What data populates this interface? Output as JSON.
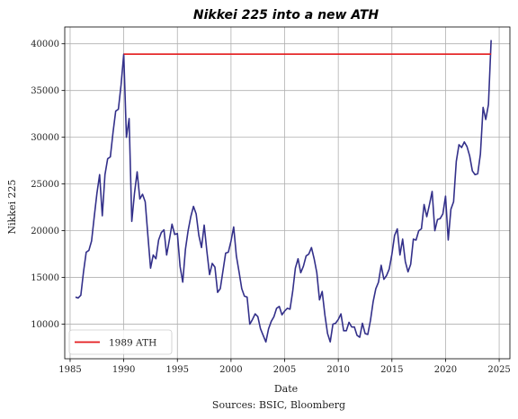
{
  "figure": {
    "source_note": "Sources: BSIC, Bloomberg"
  },
  "chart_data": {
    "type": "line",
    "title": "Nikkei 225 into a new ATH",
    "xlabel": "Date",
    "ylabel": "Nikkei 225",
    "xlim": [
      1984.5,
      2026.0
    ],
    "ylim": [
      6300,
      41800
    ],
    "x_ticks": [
      1985,
      1990,
      1995,
      2000,
      2005,
      2010,
      2015,
      2020,
      2025
    ],
    "y_ticks": [
      10000,
      15000,
      20000,
      25000,
      30000,
      35000,
      40000
    ],
    "grid": true,
    "legend_position": "lower-left",
    "series": [
      {
        "name": "",
        "color": "#33308a",
        "x": [
          1985.5,
          1985.75,
          1986.0,
          1986.25,
          1986.5,
          1986.75,
          1987.0,
          1987.25,
          1987.5,
          1987.75,
          1988.0,
          1988.25,
          1988.5,
          1988.75,
          1989.0,
          1989.25,
          1989.5,
          1989.75,
          1990.0,
          1990.25,
          1990.5,
          1990.75,
          1991.0,
          1991.25,
          1991.5,
          1991.75,
          1992.0,
          1992.25,
          1992.5,
          1992.75,
          1993.0,
          1993.25,
          1993.5,
          1993.75,
          1994.0,
          1994.25,
          1994.5,
          1994.75,
          1995.0,
          1995.25,
          1995.5,
          1995.75,
          1996.0,
          1996.25,
          1996.5,
          1996.75,
          1997.0,
          1997.25,
          1997.5,
          1997.75,
          1998.0,
          1998.25,
          1998.5,
          1998.75,
          1999.0,
          1999.25,
          1999.5,
          1999.75,
          2000.0,
          2000.25,
          2000.5,
          2000.75,
          2001.0,
          2001.25,
          2001.5,
          2001.75,
          2002.0,
          2002.25,
          2002.5,
          2002.75,
          2003.0,
          2003.25,
          2003.5,
          2003.75,
          2004.0,
          2004.25,
          2004.5,
          2004.75,
          2005.0,
          2005.25,
          2005.5,
          2005.75,
          2006.0,
          2006.25,
          2006.5,
          2006.75,
          2007.0,
          2007.25,
          2007.5,
          2007.75,
          2008.0,
          2008.25,
          2008.5,
          2008.75,
          2009.0,
          2009.25,
          2009.5,
          2009.75,
          2010.0,
          2010.25,
          2010.5,
          2010.75,
          2011.0,
          2011.25,
          2011.5,
          2011.75,
          2012.0,
          2012.25,
          2012.5,
          2012.75,
          2013.0,
          2013.25,
          2013.5,
          2013.75,
          2014.0,
          2014.25,
          2014.5,
          2014.75,
          2015.0,
          2015.25,
          2015.5,
          2015.75,
          2016.0,
          2016.25,
          2016.5,
          2016.75,
          2017.0,
          2017.25,
          2017.5,
          2017.75,
          2018.0,
          2018.25,
          2018.5,
          2018.75,
          2019.0,
          2019.25,
          2019.5,
          2019.75,
          2020.0,
          2020.25,
          2020.5,
          2020.75,
          2021.0,
          2021.25,
          2021.5,
          2021.75,
          2022.0,
          2022.25,
          2022.5,
          2022.75,
          2023.0,
          2023.25,
          2023.5,
          2023.75,
          2024.0,
          2024.25
        ],
        "y": [
          12900,
          12800,
          13100,
          15600,
          17700,
          17900,
          18900,
          21500,
          24000,
          26000,
          21600,
          26000,
          27700,
          27900,
          30500,
          32800,
          33000,
          35600,
          38900,
          30000,
          32000,
          21000,
          24000,
          26300,
          23400,
          23900,
          23100,
          19500,
          16000,
          17400,
          17000,
          19000,
          19800,
          20100,
          17400,
          19000,
          20700,
          19600,
          19700,
          16200,
          14500,
          18000,
          20000,
          21500,
          22600,
          21800,
          19500,
          18200,
          20600,
          17800,
          15300,
          16500,
          16100,
          13400,
          13800,
          15700,
          17600,
          17700,
          18900,
          20400,
          17300,
          15600,
          13800,
          13000,
          12900,
          10000,
          10500,
          11100,
          10800,
          9500,
          8800,
          8100,
          9500,
          10300,
          10800,
          11700,
          11900,
          11000,
          11400,
          11700,
          11600,
          13500,
          16000,
          17000,
          15500,
          16200,
          17300,
          17500,
          18200,
          17000,
          15500,
          12600,
          13500,
          11000,
          9000,
          8100,
          10000,
          10100,
          10500,
          11100,
          9300,
          9300,
          10200,
          9700,
          9700,
          8800,
          8600,
          10100,
          9000,
          8900,
          10400,
          12400,
          13800,
          14500,
          16300,
          14800,
          15200,
          15900,
          17500,
          19500,
          20200,
          17400,
          19100,
          16700,
          15600,
          16400,
          19100,
          19000,
          20000,
          20200,
          22800,
          21500,
          22800,
          24200,
          20000,
          21200,
          21300,
          21800,
          23700,
          19000,
          22300,
          23100,
          27400,
          29200,
          28900,
          29500,
          29000,
          28000,
          26400,
          26000,
          26100,
          28200,
          33200,
          31900,
          33500,
          40400
        ]
      },
      {
        "name": "1989 ATH",
        "color": "#e41a1c",
        "x": [
          1990.0,
          2024.25
        ],
        "y": [
          38900,
          38900
        ]
      }
    ]
  }
}
